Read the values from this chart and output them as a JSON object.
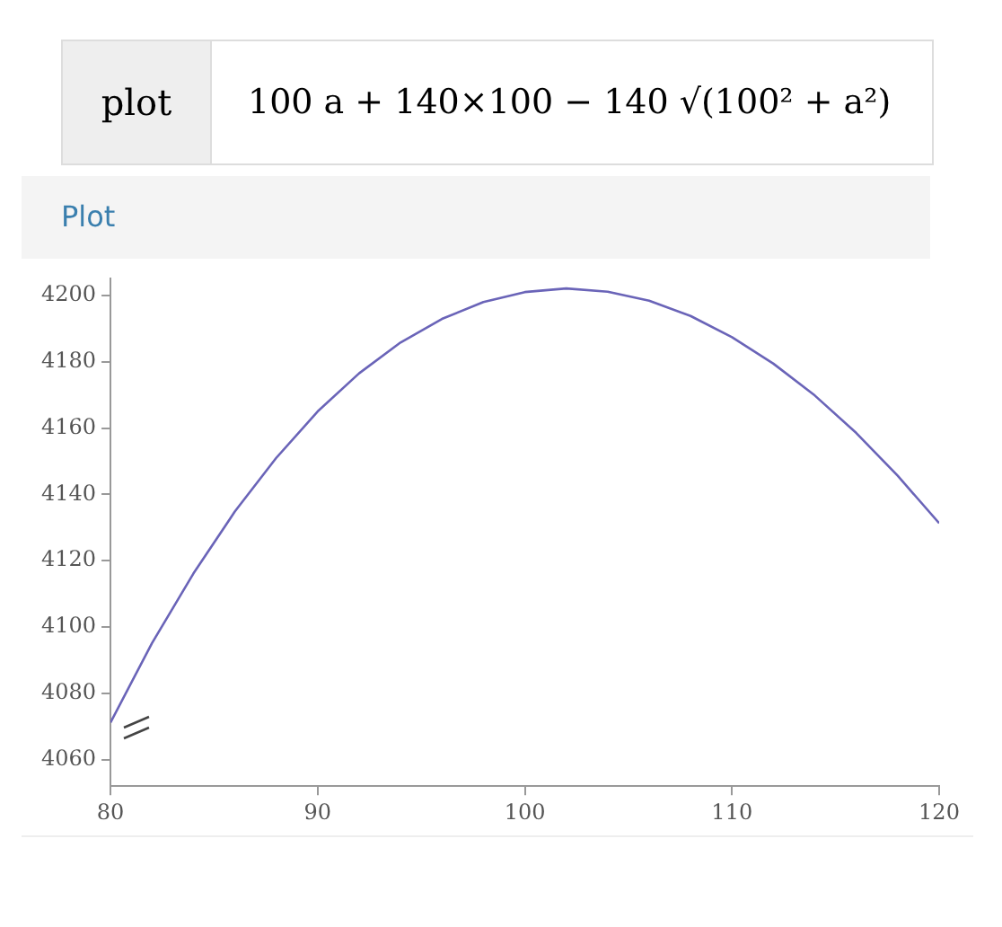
{
  "chart_data": {
    "type": "line",
    "title": "100 a + 140×100 − 140 √(100² + a²)",
    "subtitle": "Plot",
    "annotations": [
      "plot"
    ],
    "x": [
      80,
      82,
      84,
      86,
      88,
      90,
      92,
      94,
      96,
      98,
      100,
      102,
      104,
      106,
      108,
      110,
      112,
      114,
      116,
      118,
      120
    ],
    "series": [
      {
        "color": "#6a64b8",
        "values": [
          4071.2,
          4095.1,
          4116.1,
          4134.8,
          4151.0,
          4165.0,
          4176.5,
          4185.8,
          4192.9,
          4198.0,
          4201.0,
          4202.1,
          4201.1,
          4198.4,
          4193.8,
          4187.4,
          4179.4,
          4169.8,
          4158.5,
          4145.6,
          4131.3
        ]
      }
    ],
    "xlim": [
      80,
      120
    ],
    "xticks": [
      80,
      90,
      100,
      110,
      120
    ],
    "ylim": [
      4052,
      4205
    ],
    "yticks": [
      4060,
      4080,
      4100,
      4120,
      4140,
      4160,
      4180,
      4200
    ],
    "grid": false,
    "legend": false,
    "marker": "none",
    "line_style": "solid"
  }
}
